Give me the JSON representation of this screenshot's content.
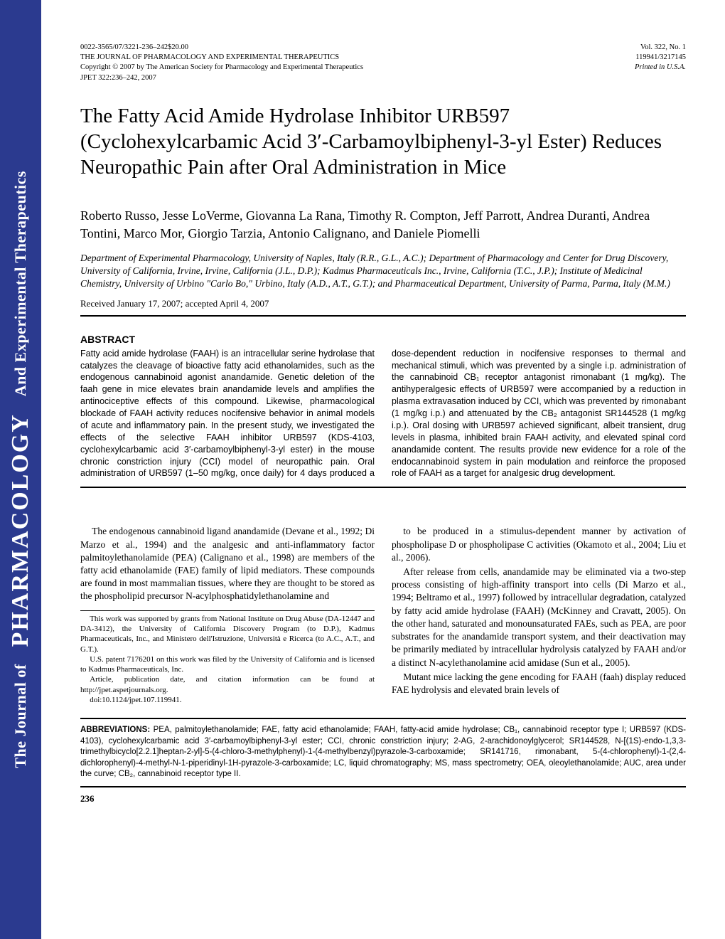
{
  "sidebar": {
    "prefix": "The Journal of",
    "main": "PHARMACOLOGY",
    "suffix": "And Experimental Therapeutics"
  },
  "header": {
    "left_line1": "0022-3565/07/3221-236–242$20.00",
    "left_line2": "THE JOURNAL OF PHARMACOLOGY AND EXPERIMENTAL THERAPEUTICS",
    "left_line3": "Copyright © 2007 by The American Society for Pharmacology and Experimental Therapeutics",
    "left_line4": "JPET 322:236–242, 2007",
    "right_line1": "Vol. 322, No. 1",
    "right_line2": "119941/3217145",
    "right_line3": "Printed in U.S.A."
  },
  "title": "The Fatty Acid Amide Hydrolase Inhibitor URB597 (Cyclohexylcarbamic Acid 3′-Carbamoylbiphenyl-3-yl Ester) Reduces Neuropathic Pain after Oral Administration in Mice",
  "authors": "Roberto Russo, Jesse LoVerme, Giovanna La Rana, Timothy R. Compton, Jeff Parrott, Andrea Duranti, Andrea Tontini, Marco Mor, Giorgio Tarzia, Antonio Calignano, and Daniele Piomelli",
  "affiliations": "Department of Experimental Pharmacology, University of Naples, Italy (R.R., G.L., A.C.); Department of Pharmacology and Center for Drug Discovery, University of California, Irvine, Irvine, California (J.L., D.P.); Kadmus Pharmaceuticals Inc., Irvine, California (T.C., J.P.); Institute of Medicinal Chemistry, University of Urbino \"Carlo Bo,\" Urbino, Italy (A.D., A.T., G.T.); and Pharmaceutical Department, University of Parma, Parma, Italy (M.M.)",
  "received": "Received January 17, 2007; accepted April 4, 2007",
  "abstract_label": "ABSTRACT",
  "abstract_text": "Fatty acid amide hydrolase (FAAH) is an intracellular serine hydrolase that catalyzes the cleavage of bioactive fatty acid ethanolamides, such as the endogenous cannabinoid agonist anandamide. Genetic deletion of the faah gene in mice elevates brain anandamide levels and amplifies the antinociceptive effects of this compound. Likewise, pharmacological blockade of FAAH activity reduces nocifensive behavior in animal models of acute and inflammatory pain. In the present study, we investigated the effects of the selective FAAH inhibitor URB597 (KDS-4103, cyclohexylcarbamic acid 3′-carbamoylbiphenyl-3-yl ester) in the mouse chronic constriction injury (CCI) model of neuropathic pain. Oral administration of URB597 (1–50 mg/kg, once daily) for 4 days produced a dose-dependent reduction in nocifensive responses to thermal and mechanical stimuli, which was prevented by a single i.p. administration of the cannabinoid CB₁ receptor antagonist rimonabant (1 mg/kg). The antihyperalgesic effects of URB597 were accompanied by a reduction in plasma extravasation induced by CCI, which was prevented by rimonabant (1 mg/kg i.p.) and attenuated by the CB₂ antagonist SR144528 (1 mg/kg i.p.). Oral dosing with URB597 achieved significant, albeit transient, drug levels in plasma, inhibited brain FAAH activity, and elevated spinal cord anandamide content. The results provide new evidence for a role of the endocannabinoid system in pain modulation and reinforce the proposed role of FAAH as a target for analgesic drug development.",
  "body_p1": "The endogenous cannabinoid ligand anandamide (Devane et al., 1992; Di Marzo et al., 1994) and the analgesic and anti-inflammatory factor palmitoylethanolamide (PEA) (Calignano et al., 1998) are members of the fatty acid ethanolamide (FAE) family of lipid mediators. These compounds are found in most mammalian tissues, where they are thought to be stored as the phospholipid precursor N-acylphosphatidylethanolamine and",
  "body_p2": "to be produced in a stimulus-dependent manner by activation of phospholipase D or phospholipase C activities (Okamoto et al., 2004; Liu et al., 2006).",
  "body_p3": "After release from cells, anandamide may be eliminated via a two-step process consisting of high-affinity transport into cells (Di Marzo et al., 1994; Beltramo et al., 1997) followed by intracellular degradation, catalyzed by fatty acid amide hydrolase (FAAH) (McKinney and Cravatt, 2005). On the other hand, saturated and monounsaturated FAEs, such as PEA, are poor substrates for the anandamide transport system, and their deactivation may be primarily mediated by intracellular hydrolysis catalyzed by FAAH and/or a distinct N-acylethanolamine acid amidase (Sun et al., 2005).",
  "body_p4": "Mutant mice lacking the gene encoding for FAAH (faah) display reduced FAE hydrolysis and elevated brain levels of",
  "footnotes": {
    "f1": "This work was supported by grants from National Institute on Drug Abuse (DA-12447 and DA-3412), the University of California Discovery Program (to D.P.), Kadmus Pharmaceuticals, Inc., and Ministero dell'Istruzione, Università e Ricerca (to A.C., A.T., and G.T.).",
    "f2": "U.S. patent 7176201 on this work was filed by the University of California and is licensed to Kadmus Pharmaceuticals, Inc.",
    "f3": "Article, publication date, and citation information can be found at http://jpet.aspetjournals.org.",
    "f4": "doi:10.1124/jpet.107.119941."
  },
  "abbreviations_label": "ABBREVIATIONS:",
  "abbreviations_text": " PEA, palmitoylethanolamide; FAE, fatty acid ethanolamide; FAAH, fatty-acid amide hydrolase; CB₁, cannabinoid receptor type I; URB597 (KDS-4103), cyclohexylcarbamic acid 3′-carbamoylbiphenyl-3-yl ester; CCI, chronic constriction injury; 2-AG, 2-arachidonoylglycerol; SR144528, N-[(1S)-endo-1,3,3-trimethylbicyclo[2.2.1]heptan-2-yl]-5-(4-chloro-3-methylphenyl)-1-(4-methylbenzyl)pyrazole-3-carboxamide; SR141716, rimonabant, 5-(4-chlorophenyl)-1-(2,4-dichlorophenyl)-4-methyl-N-1-piperidinyl-1H-pyrazole-3-carboxamide; LC, liquid chromatography; MS, mass spectrometry; OEA, oleoylethanolamide; AUC, area under the curve; CB₂, cannabinoid receptor type II.",
  "page_number": "236"
}
